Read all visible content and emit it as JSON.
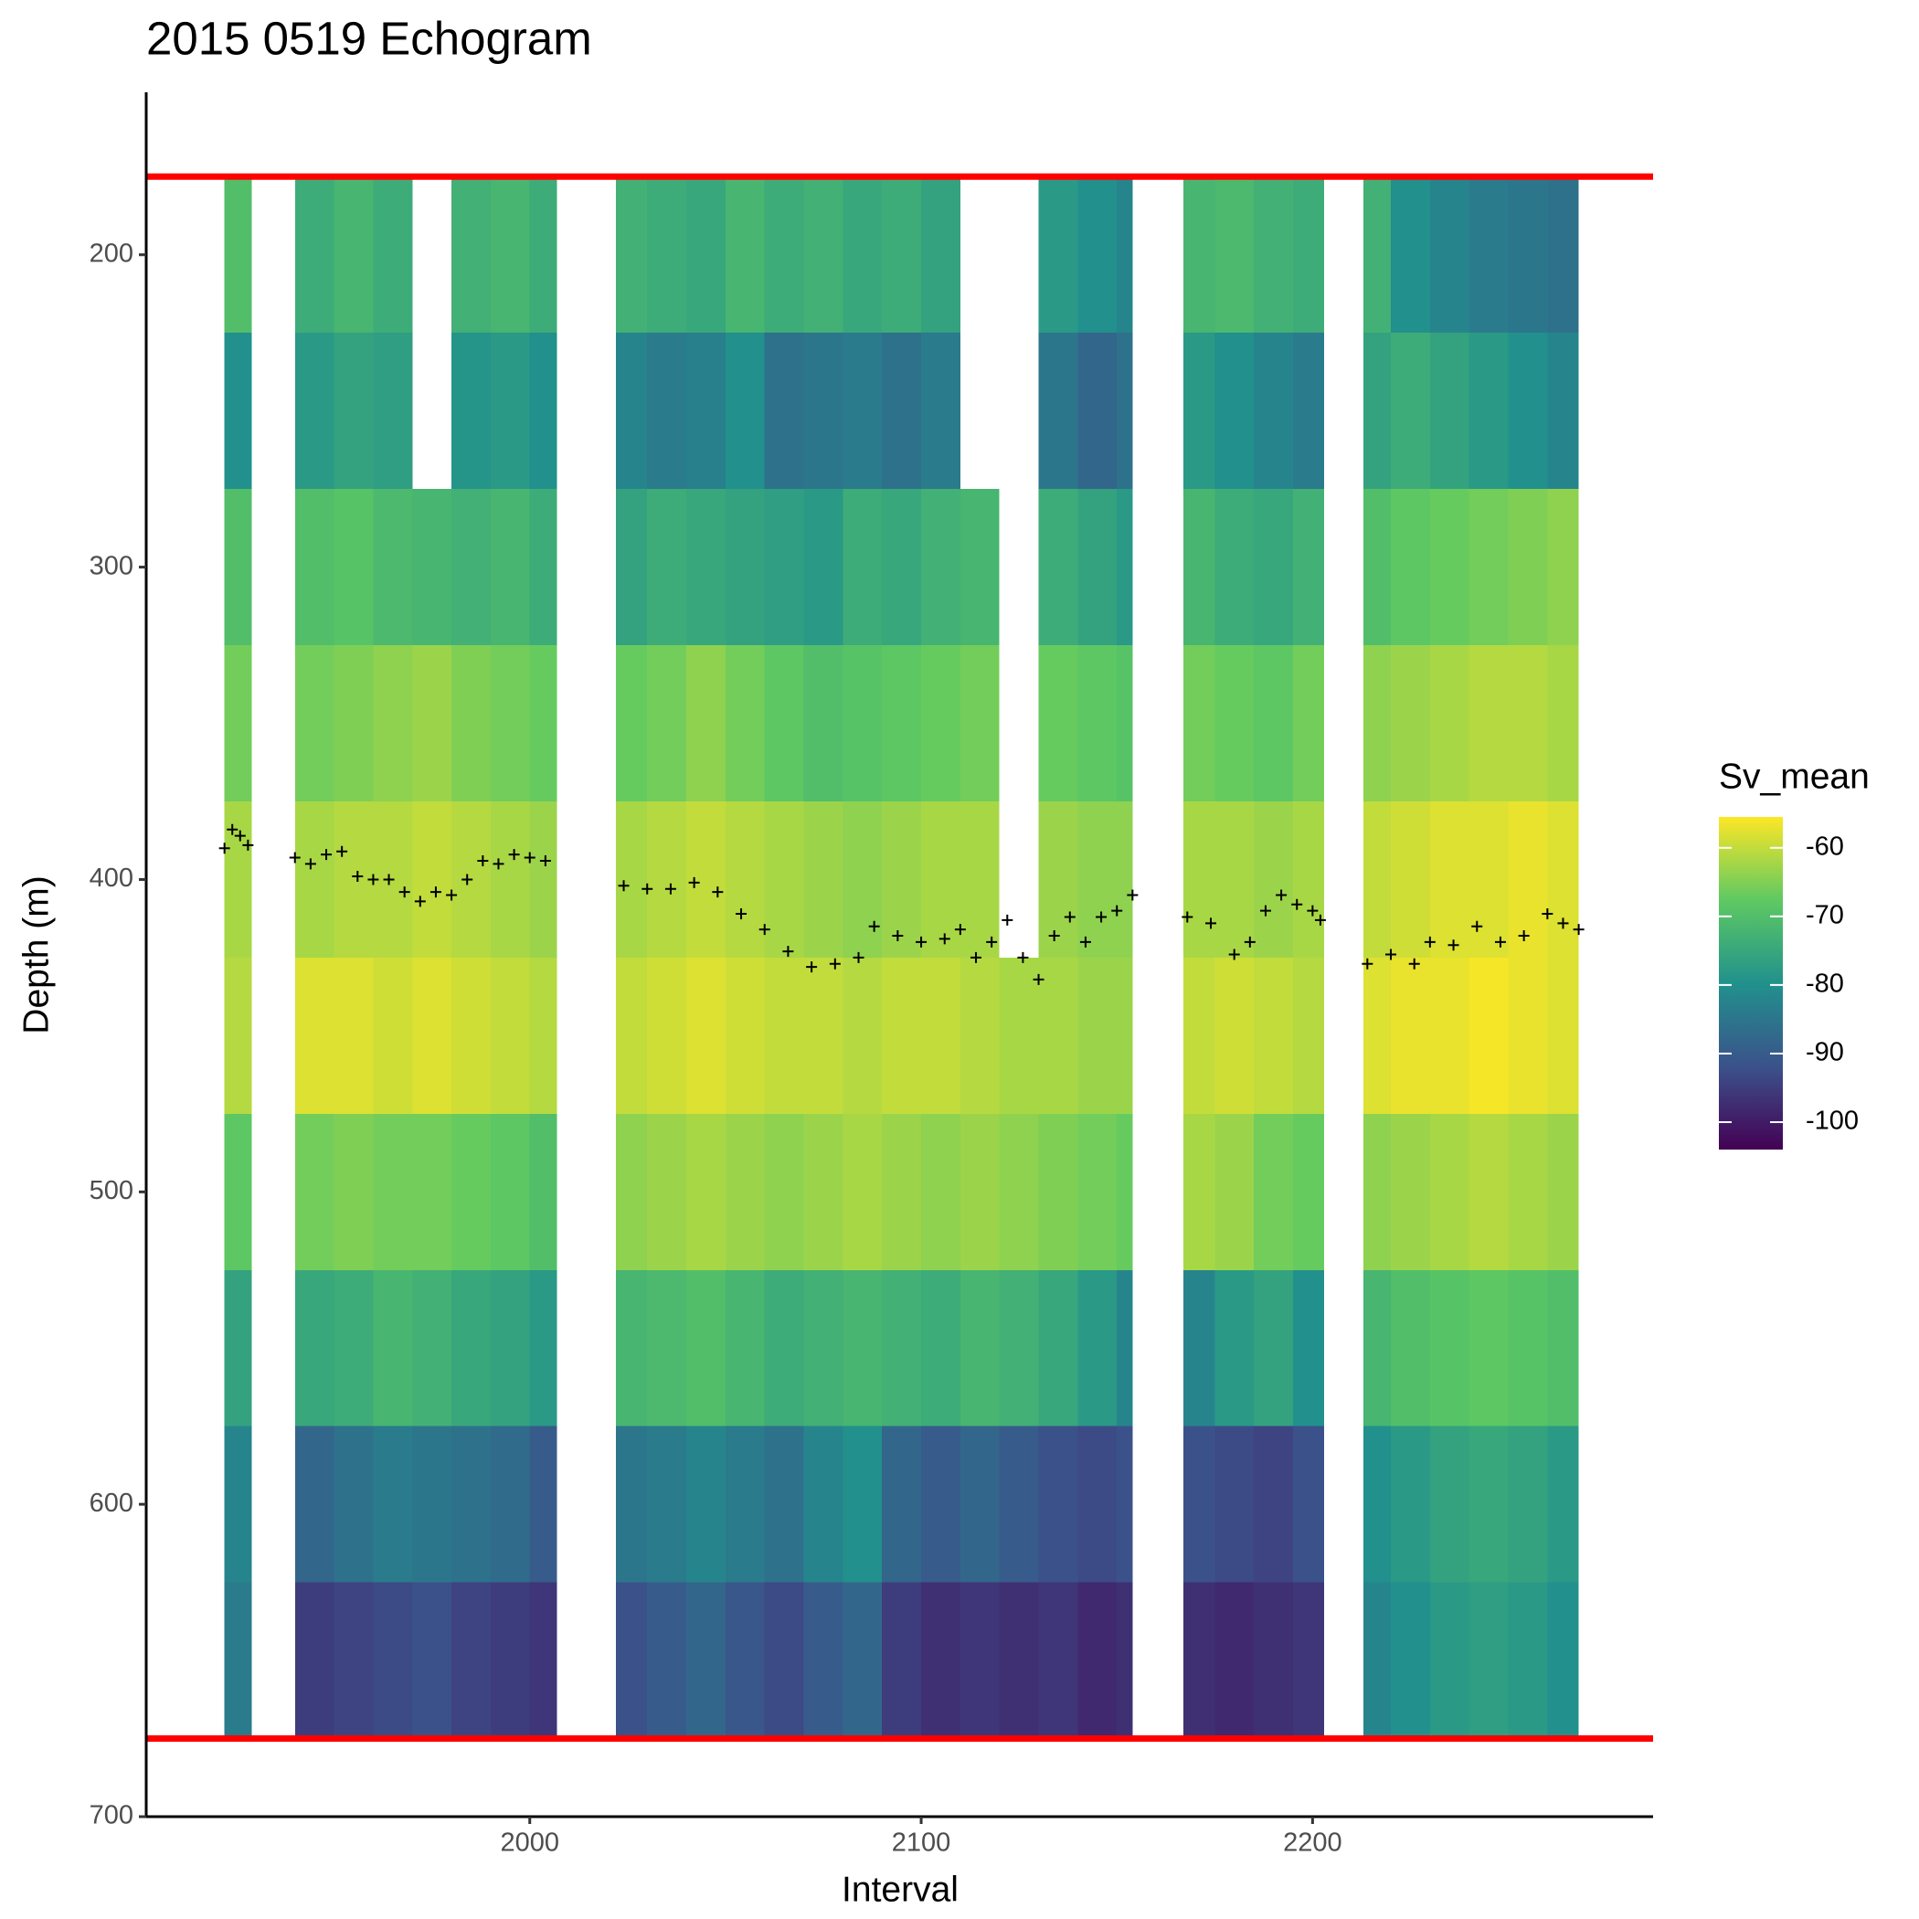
{
  "chart_data": {
    "type": "heatmap",
    "title": "2015 0519 Echogram",
    "x_label": "Interval",
    "y_label": "Depth (m)",
    "xlim": [
      1902,
      2287
    ],
    "xticks": [
      2000,
      2100,
      2200
    ],
    "ylim": [
      700,
      148
    ],
    "yticks": [
      200,
      300,
      400,
      500,
      600,
      700
    ],
    "xbins": [
      1922,
      1929,
      1940,
      1950,
      1960,
      1970,
      1980,
      1990,
      2000,
      2007,
      2022,
      2030,
      2040,
      2050,
      2060,
      2070,
      2080,
      2090,
      2100,
      2110,
      2120,
      2130,
      2140,
      2150,
      2154,
      2167,
      2175,
      2185,
      2195,
      2203,
      2213,
      2220,
      2230,
      2240,
      2250,
      2260,
      2268
    ],
    "ybins": [
      175,
      225,
      275,
      325,
      375,
      425,
      475,
      525,
      575,
      625,
      675
    ],
    "values": [
      [
        -70,
        null,
        -74,
        -72,
        -74,
        null,
        -73,
        -72,
        -74,
        null,
        -73,
        -74,
        -75,
        -72,
        -74,
        -73,
        -75,
        -74,
        -76,
        null,
        null,
        -78,
        -80,
        -82,
        null,
        -72,
        -71,
        -73,
        -74,
        null,
        -73,
        -80,
        -82,
        -84,
        -85,
        -86
      ],
      [
        -80,
        null,
        -78,
        -76,
        -77,
        null,
        -79,
        -78,
        -80,
        null,
        -82,
        -84,
        -83,
        -80,
        -86,
        -85,
        -84,
        -86,
        -84,
        null,
        null,
        -85,
        -88,
        -86,
        null,
        -78,
        -80,
        -82,
        -84,
        null,
        -76,
        -74,
        -76,
        -78,
        -80,
        -82
      ],
      [
        -70,
        null,
        -70,
        -69,
        -71,
        -72,
        -73,
        -72,
        -74,
        null,
        -76,
        -74,
        -75,
        -76,
        -77,
        -78,
        -74,
        -75,
        -73,
        -72,
        null,
        -74,
        -76,
        -78,
        null,
        -72,
        -74,
        -75,
        -73,
        null,
        -70,
        -68,
        -67,
        -66,
        -65,
        -64
      ],
      [
        -66,
        null,
        -66,
        -65,
        -64,
        -63,
        -65,
        -66,
        -67,
        null,
        -67,
        -66,
        -64,
        -66,
        -68,
        -70,
        -69,
        -68,
        -67,
        -66,
        null,
        -67,
        -68,
        -69,
        null,
        -66,
        -67,
        -68,
        -66,
        null,
        -64,
        -63,
        -62,
        -61,
        -61,
        -62
      ],
      [
        -62,
        null,
        -62,
        -61,
        -61,
        -60,
        -61,
        -62,
        -63,
        null,
        -62,
        -61,
        -60,
        -61,
        -62,
        -63,
        -64,
        -63,
        -62,
        -62,
        null,
        -63,
        -64,
        -64,
        null,
        -62,
        -62,
        -63,
        -62,
        null,
        -60,
        -59,
        -58,
        -58,
        -57,
        -58
      ],
      [
        -61,
        null,
        -58,
        -58,
        -59,
        -58,
        -59,
        -60,
        -61,
        null,
        -60,
        -59,
        -58,
        -59,
        -60,
        -60,
        -61,
        -60,
        -60,
        -61,
        -62,
        -62,
        -63,
        -63,
        null,
        -60,
        -59,
        -60,
        -61,
        null,
        -58,
        -57,
        -57,
        -56,
        -57,
        -58
      ],
      [
        -68,
        null,
        -66,
        -65,
        -66,
        -66,
        -67,
        -68,
        -70,
        null,
        -64,
        -63,
        -62,
        -63,
        -64,
        -63,
        -62,
        -63,
        -64,
        -63,
        -64,
        -65,
        -66,
        -67,
        null,
        -62,
        -63,
        -66,
        -67,
        null,
        -64,
        -63,
        -62,
        -61,
        -62,
        -63
      ],
      [
        -76,
        null,
        -75,
        -74,
        -72,
        -73,
        -75,
        -76,
        -78,
        null,
        -72,
        -71,
        -70,
        -72,
        -74,
        -73,
        -72,
        -73,
        -74,
        -72,
        -73,
        -75,
        -78,
        -82,
        null,
        -82,
        -78,
        -76,
        -80,
        null,
        -72,
        -70,
        -69,
        -68,
        -69,
        -70
      ],
      [
        -82,
        null,
        -88,
        -86,
        -84,
        -85,
        -86,
        -87,
        -90,
        null,
        -85,
        -84,
        -82,
        -84,
        -86,
        -82,
        -80,
        -88,
        -90,
        -88,
        -90,
        -92,
        -93,
        -92,
        null,
        -92,
        -93,
        -94,
        -92,
        null,
        -80,
        -78,
        -76,
        -75,
        -76,
        -78
      ],
      [
        -84,
        null,
        -95,
        -94,
        -93,
        -92,
        -94,
        -95,
        -96,
        null,
        -92,
        -90,
        -88,
        -91,
        -93,
        -90,
        -88,
        -95,
        -97,
        -96,
        -97,
        -96,
        -98,
        -97,
        null,
        -97,
        -98,
        -97,
        -96,
        null,
        -82,
        -80,
        -78,
        -77,
        -78,
        -80
      ]
    ],
    "colorbar_title": "Sv_mean",
    "clim": [
      -104,
      -55.5
    ],
    "cticks": [
      -60,
      -70,
      -80,
      -90,
      -100
    ],
    "colors": [
      "#440154",
      "#3b528b",
      "#21918c",
      "#5ec962",
      "#fde725"
    ],
    "points": {
      "marker": "+",
      "color": "#000000",
      "x": [
        1922,
        1924,
        1926,
        1928,
        1940,
        1944,
        1948,
        1952,
        1956,
        1960,
        1964,
        1968,
        1972,
        1976,
        1980,
        1984,
        1988,
        1992,
        1996,
        2000,
        2004,
        2024,
        2030,
        2036,
        2042,
        2048,
        2054,
        2060,
        2066,
        2072,
        2078,
        2084,
        2088,
        2094,
        2100,
        2106,
        2110,
        2114,
        2118,
        2122,
        2126,
        2130,
        2134,
        2138,
        2142,
        2146,
        2150,
        2154,
        2168,
        2174,
        2180,
        2184,
        2188,
        2192,
        2196,
        2200,
        2202,
        2214,
        2220,
        2226,
        2230,
        2236,
        2242,
        2248,
        2254,
        2260,
        2264,
        2268
      ],
      "y": [
        390,
        384,
        386,
        389,
        393,
        395,
        392,
        391,
        399,
        400,
        400,
        404,
        407,
        404,
        405,
        400,
        394,
        395,
        392,
        393,
        394,
        402,
        403,
        403,
        401,
        404,
        411,
        416,
        423,
        428,
        427,
        425,
        415,
        418,
        420,
        419,
        416,
        425,
        420,
        413,
        425,
        432,
        418,
        412,
        420,
        412,
        410,
        405,
        412,
        414,
        424,
        420,
        410,
        405,
        408,
        410,
        413,
        427,
        424,
        427,
        420,
        421,
        415,
        420,
        418,
        411,
        414,
        416
      ]
    },
    "hlines": {
      "values": [
        175,
        675
      ],
      "color": "#ff0000"
    }
  }
}
